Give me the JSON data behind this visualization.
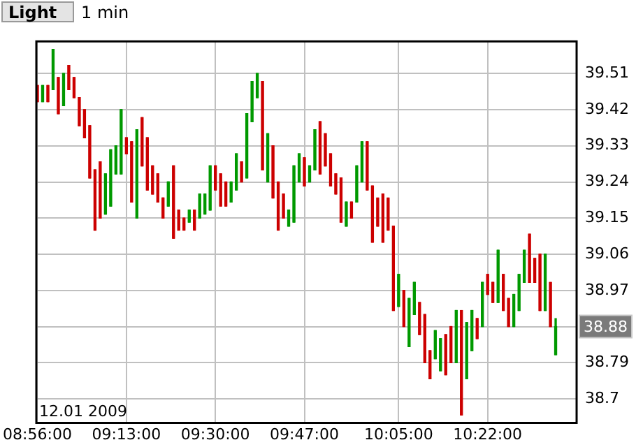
{
  "chart_data": {
    "type": "candlestick",
    "annotations": [
      "Light",
      "1 min",
      "12.01 2009",
      "38.88"
    ],
    "x": [
      8.9333,
      8.95,
      8.9667,
      8.9833,
      9,
      9.0167,
      9.0333,
      9.05,
      9.0667,
      9.0833,
      9.1,
      9.1167,
      9.1333,
      9.15,
      9.1667,
      9.1833,
      9.2,
      9.2167,
      9.2333,
      9.25,
      9.2667,
      9.2833,
      9.3,
      9.3167,
      9.3333,
      9.35,
      9.3667,
      9.3833,
      9.4,
      9.4167,
      9.4333,
      9.45,
      9.4667,
      9.4833,
      9.5,
      9.5167,
      9.5333,
      9.55,
      9.5667,
      9.5833,
      9.6,
      9.6167,
      9.6333,
      9.65,
      9.6667,
      9.6833,
      9.7,
      9.7167,
      9.7333,
      9.75,
      9.7667,
      9.7833,
      9.8,
      9.8167,
      9.8333,
      9.85,
      9.8667,
      9.8833,
      9.9,
      9.9167,
      9.9333,
      9.95,
      9.9667,
      9.9833,
      10,
      10.0167,
      10.0333,
      10.05,
      10.0667,
      10.0833,
      10.1,
      10.1167,
      10.1333,
      10.15,
      10.1667,
      10.1833,
      10.2,
      10.2167,
      10.2333,
      10.25,
      10.2667,
      10.2833,
      10.3,
      10.3167,
      10.3333,
      10.35,
      10.3667,
      10.3833,
      10.4,
      10.4167,
      10.4333,
      10.45,
      10.4667,
      10.4833,
      10.5,
      10.5167,
      10.5333,
      10.55,
      10.5667,
      10.5833
    ],
    "ohlc": [
      [
        39.48,
        39.48,
        39.44,
        39.44
      ],
      [
        39.44,
        39.48,
        39.44,
        39.48
      ],
      [
        39.48,
        39.48,
        39.44,
        39.44
      ],
      [
        39.47,
        39.57,
        39.47,
        39.57
      ],
      [
        39.5,
        39.5,
        39.41,
        39.41
      ],
      [
        39.43,
        39.51,
        39.43,
        39.51
      ],
      [
        39.53,
        39.53,
        39.47,
        39.47
      ],
      [
        39.5,
        39.5,
        39.45,
        39.45
      ],
      [
        39.45,
        39.45,
        39.38,
        39.38
      ],
      [
        39.42,
        39.42,
        39.35,
        39.35
      ],
      [
        39.38,
        39.38,
        39.25,
        39.25
      ],
      [
        39.27,
        39.27,
        39.12,
        39.12
      ],
      [
        39.29,
        39.29,
        39.15,
        39.15
      ],
      [
        39.16,
        39.26,
        39.16,
        39.26
      ],
      [
        39.18,
        39.32,
        39.18,
        39.32
      ],
      [
        39.26,
        39.33,
        39.26,
        39.33
      ],
      [
        39.26,
        39.42,
        39.26,
        39.42
      ],
      [
        39.35,
        39.35,
        39.31,
        39.31
      ],
      [
        39.34,
        39.34,
        39.19,
        39.19
      ],
      [
        39.15,
        39.37,
        39.15,
        39.37
      ],
      [
        39.4,
        39.4,
        39.28,
        39.28
      ],
      [
        39.35,
        39.35,
        39.22,
        39.22
      ],
      [
        39.28,
        39.28,
        39.21,
        39.21
      ],
      [
        39.26,
        39.26,
        39.19,
        39.19
      ],
      [
        39.2,
        39.2,
        39.15,
        39.15
      ],
      [
        39.18,
        39.24,
        39.18,
        39.24
      ],
      [
        39.28,
        39.28,
        39.1,
        39.1
      ],
      [
        39.17,
        39.17,
        39.12,
        39.12
      ],
      [
        39.15,
        39.15,
        39.12,
        39.12
      ],
      [
        39.14,
        39.17,
        39.14,
        39.17
      ],
      [
        39.17,
        39.17,
        39.12,
        39.12
      ],
      [
        39.15,
        39.21,
        39.15,
        39.21
      ],
      [
        39.16,
        39.21,
        39.16,
        39.21
      ],
      [
        39.17,
        39.28,
        39.17,
        39.28
      ],
      [
        39.28,
        39.28,
        39.22,
        39.22
      ],
      [
        39.26,
        39.26,
        39.18,
        39.18
      ],
      [
        39.24,
        39.24,
        39.18,
        39.18
      ],
      [
        39.19,
        39.24,
        39.19,
        39.24
      ],
      [
        39.22,
        39.31,
        39.22,
        39.31
      ],
      [
        39.29,
        39.29,
        39.24,
        39.24
      ],
      [
        39.25,
        39.41,
        39.25,
        39.41
      ],
      [
        39.39,
        39.49,
        39.39,
        39.49
      ],
      [
        39.45,
        39.51,
        39.45,
        39.51
      ],
      [
        39.49,
        39.49,
        39.27,
        39.27
      ],
      [
        39.24,
        39.36,
        39.24,
        39.36
      ],
      [
        39.33,
        39.33,
        39.2,
        39.2
      ],
      [
        39.24,
        39.24,
        39.12,
        39.12
      ],
      [
        39.21,
        39.21,
        39.15,
        39.15
      ],
      [
        39.13,
        39.17,
        39.13,
        39.17
      ],
      [
        39.14,
        39.28,
        39.14,
        39.28
      ],
      [
        39.24,
        39.31,
        39.24,
        39.31
      ],
      [
        39.3,
        39.3,
        39.23,
        39.23
      ],
      [
        39.24,
        39.28,
        39.24,
        39.28
      ],
      [
        39.27,
        39.37,
        39.27,
        39.37
      ],
      [
        39.39,
        39.39,
        39.26,
        39.26
      ],
      [
        39.36,
        39.36,
        39.28,
        39.28
      ],
      [
        39.31,
        39.31,
        39.23,
        39.23
      ],
      [
        39.26,
        39.26,
        39.21,
        39.21
      ],
      [
        39.25,
        39.25,
        39.14,
        39.14
      ],
      [
        39.13,
        39.19,
        39.13,
        39.19
      ],
      [
        39.19,
        39.19,
        39.15,
        39.15
      ],
      [
        39.19,
        39.28,
        39.19,
        39.28
      ],
      [
        39.24,
        39.34,
        39.24,
        39.34
      ],
      [
        39.34,
        39.34,
        39.22,
        39.22
      ],
      [
        39.23,
        39.23,
        39.09,
        39.09
      ],
      [
        39.2,
        39.2,
        39.13,
        39.13
      ],
      [
        39.21,
        39.21,
        39.09,
        39.09
      ],
      [
        39.2,
        39.2,
        39.12,
        39.12
      ],
      [
        39.13,
        39.13,
        38.92,
        38.92
      ],
      [
        38.93,
        39.01,
        38.93,
        39.01
      ],
      [
        38.97,
        38.97,
        38.88,
        38.88
      ],
      [
        38.83,
        38.95,
        38.83,
        38.95
      ],
      [
        38.91,
        38.99,
        38.91,
        38.99
      ],
      [
        38.94,
        38.94,
        38.86,
        38.86
      ],
      [
        38.91,
        38.91,
        38.79,
        38.79
      ],
      [
        38.82,
        38.82,
        38.75,
        38.75
      ],
      [
        38.8,
        38.87,
        38.8,
        38.87
      ],
      [
        38.77,
        38.85,
        38.77,
        38.85
      ],
      [
        38.86,
        38.86,
        38.76,
        38.76
      ],
      [
        38.88,
        38.88,
        38.79,
        38.79
      ],
      [
        38.79,
        38.92,
        38.79,
        38.92
      ],
      [
        38.92,
        38.92,
        38.66,
        38.66
      ],
      [
        38.75,
        38.89,
        38.75,
        38.89
      ],
      [
        38.82,
        38.92,
        38.82,
        38.92
      ],
      [
        38.9,
        38.9,
        38.85,
        38.85
      ],
      [
        38.88,
        38.99,
        38.88,
        38.99
      ],
      [
        39.01,
        39.01,
        38.96,
        38.96
      ],
      [
        38.99,
        38.99,
        38.94,
        38.94
      ],
      [
        38.94,
        39.07,
        38.94,
        39.07
      ],
      [
        39.01,
        39.01,
        38.92,
        38.92
      ],
      [
        38.95,
        38.95,
        38.88,
        38.88
      ],
      [
        38.88,
        38.96,
        38.88,
        38.96
      ],
      [
        38.92,
        39.01,
        38.92,
        39.01
      ],
      [
        38.99,
        39.07,
        38.99,
        39.07
      ],
      [
        39.11,
        39.11,
        38.99,
        38.99
      ],
      [
        39.05,
        39.05,
        38.99,
        38.99
      ],
      [
        39.06,
        39.06,
        38.92,
        38.92
      ],
      [
        38.92,
        39.06,
        38.92,
        39.06
      ],
      [
        38.99,
        38.99,
        38.88,
        38.88
      ],
      [
        38.81,
        38.9,
        38.81,
        38.88
      ]
    ],
    "xlim": [
      8.93,
      10.65
    ],
    "xticks": [
      {
        "value": 8.9333,
        "label": "08:56:00"
      },
      {
        "value": 9.2167,
        "label": "09:13:00"
      },
      {
        "value": 9.5,
        "label": "09:30:00"
      },
      {
        "value": 9.7833,
        "label": "09:47:00"
      },
      {
        "value": 10.0833,
        "label": "10:05:00"
      },
      {
        "value": 10.3667,
        "label": "10:22:00"
      }
    ],
    "ylim": [
      38.64,
      39.59
    ],
    "yticks": [
      39.51,
      39.42,
      39.33,
      39.24,
      39.15,
      39.06,
      38.97,
      {
        "value": 38.88,
        "label": null
      },
      38.79,
      38.7
    ],
    "grid": true,
    "legend": false
  }
}
